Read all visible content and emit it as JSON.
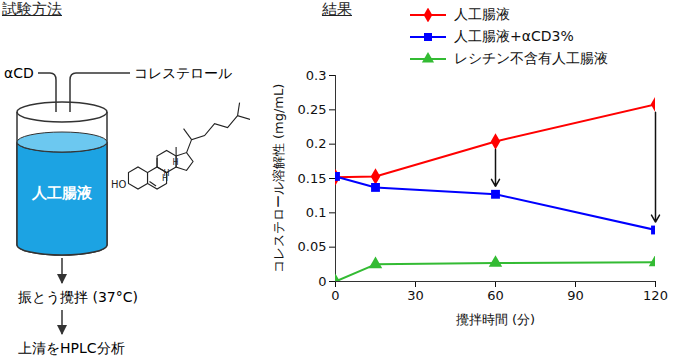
{
  "header": {
    "left_title": "試験方法",
    "right_title": "結果"
  },
  "diagram": {
    "inputs": [
      "αCD",
      "コレステロール"
    ],
    "vessel_label": "人工腸液",
    "structure_labels": [
      "HO",
      "H",
      "H",
      "H"
    ],
    "steps": [
      "振とう攪拌 (37°C)",
      "上清をHPLC分析"
    ]
  },
  "chart_data": {
    "type": "line",
    "x_label": "攪拌時間 (分)",
    "y_label": "コレステロール溶解性 (mg/mL)",
    "x": [
      0,
      15,
      60,
      120
    ],
    "series": [
      {
        "name": "人工腸液",
        "color": "#ff0000",
        "marker": "diamond",
        "values": [
          0.152,
          0.153,
          0.204,
          0.258
        ]
      },
      {
        "name": "人工腸液+αCD3%",
        "color": "#0000ff",
        "marker": "square",
        "values": [
          0.153,
          0.137,
          0.127,
          0.075
        ]
      },
      {
        "name": "レシチン不含有人工腸液",
        "color": "#33bb33",
        "marker": "triangle",
        "values": [
          0,
          0.025,
          0.027,
          0.028
        ]
      }
    ],
    "xlim": [
      0,
      120
    ],
    "xticks": [
      0,
      30,
      60,
      90,
      120
    ],
    "ylim": [
      0,
      0.3
    ],
    "yticks": [
      0,
      0.05,
      0.1,
      0.15,
      0.2,
      0.25,
      0.3
    ],
    "grid": false,
    "legend": "top-right",
    "arrows": [
      {
        "x": 60,
        "from": "人工腸液",
        "to": "人工腸液+αCD3%"
      },
      {
        "x": 120,
        "from": "人工腸液",
        "to": "人工腸液+αCD3%"
      }
    ]
  }
}
